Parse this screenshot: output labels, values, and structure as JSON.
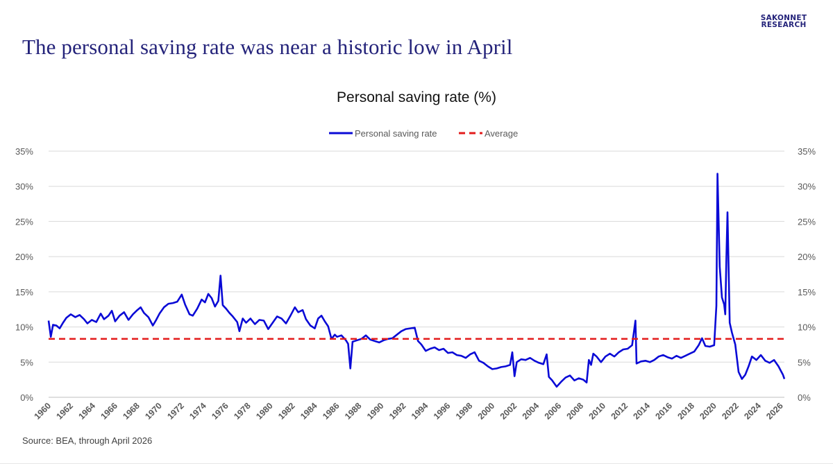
{
  "headline": "The personal saving rate was near a historic low in April",
  "logo": {
    "line1": "SAKONNET",
    "line2": "RESEARCH"
  },
  "source": "Source: BEA, through April 2026",
  "colors": {
    "headline": "#24237a",
    "series": "#0a0ad6",
    "average": "#e31b1b",
    "grid": "#d9d9d9",
    "axis_text": "#595959"
  },
  "chart_data": {
    "type": "line",
    "title": "Personal saving rate (%)",
    "xlabel": "",
    "ylabel": "",
    "legend_position": "top",
    "grid": true,
    "xlim": [
      1960,
      2026.33
    ],
    "ylim": [
      0,
      35
    ],
    "y_ticks": [
      0,
      5,
      10,
      15,
      20,
      25,
      30,
      35
    ],
    "y_tick_labels": [
      "0%",
      "5%",
      "10%",
      "15%",
      "20%",
      "25%",
      "30%",
      "35%"
    ],
    "x_tick_labels": [
      "1960",
      "1962",
      "1964",
      "1966",
      "1968",
      "1970",
      "1972",
      "1974",
      "1976",
      "1978",
      "1980",
      "1982",
      "1984",
      "1986",
      "1988",
      "1990",
      "1992",
      "1994",
      "1996",
      "1998",
      "2000",
      "2002",
      "2004",
      "2006",
      "2008",
      "2010",
      "2012",
      "2014",
      "2016",
      "2018",
      "2020",
      "2022",
      "2024",
      "2026"
    ],
    "series": [
      {
        "name": "Personal saving rate",
        "style": "solid",
        "color": "#0a0ad6",
        "points": [
          [
            1960.0,
            10.9
          ],
          [
            1960.2,
            8.6
          ],
          [
            1960.4,
            10.3
          ],
          [
            1960.7,
            10.2
          ],
          [
            1961.0,
            9.8
          ],
          [
            1961.3,
            10.6
          ],
          [
            1961.6,
            11.3
          ],
          [
            1962.0,
            11.8
          ],
          [
            1962.4,
            11.4
          ],
          [
            1962.8,
            11.7
          ],
          [
            1963.2,
            11.1
          ],
          [
            1963.5,
            10.5
          ],
          [
            1963.9,
            11.0
          ],
          [
            1964.3,
            10.7
          ],
          [
            1964.7,
            11.9
          ],
          [
            1965.0,
            11.1
          ],
          [
            1965.4,
            11.6
          ],
          [
            1965.7,
            12.3
          ],
          [
            1966.0,
            10.8
          ],
          [
            1966.4,
            11.6
          ],
          [
            1966.8,
            12.1
          ],
          [
            1967.2,
            11.0
          ],
          [
            1967.6,
            11.8
          ],
          [
            1968.0,
            12.4
          ],
          [
            1968.3,
            12.8
          ],
          [
            1968.6,
            12.0
          ],
          [
            1969.0,
            11.4
          ],
          [
            1969.4,
            10.2
          ],
          [
            1969.7,
            11.0
          ],
          [
            1970.0,
            11.9
          ],
          [
            1970.4,
            12.8
          ],
          [
            1970.8,
            13.3
          ],
          [
            1971.2,
            13.4
          ],
          [
            1971.6,
            13.6
          ],
          [
            1972.0,
            14.6
          ],
          [
            1972.3,
            13.2
          ],
          [
            1972.7,
            11.8
          ],
          [
            1973.0,
            11.6
          ],
          [
            1973.4,
            12.6
          ],
          [
            1973.8,
            13.9
          ],
          [
            1974.1,
            13.5
          ],
          [
            1974.4,
            14.7
          ],
          [
            1974.7,
            14.1
          ],
          [
            1975.0,
            12.9
          ],
          [
            1975.3,
            13.7
          ],
          [
            1975.5,
            17.3
          ],
          [
            1975.7,
            13.1
          ],
          [
            1976.0,
            12.6
          ],
          [
            1976.3,
            12.0
          ],
          [
            1976.6,
            11.5
          ],
          [
            1977.0,
            10.7
          ],
          [
            1977.2,
            9.4
          ],
          [
            1977.5,
            11.2
          ],
          [
            1977.8,
            10.6
          ],
          [
            1978.2,
            11.2
          ],
          [
            1978.6,
            10.4
          ],
          [
            1979.0,
            11.0
          ],
          [
            1979.4,
            10.9
          ],
          [
            1979.8,
            9.7
          ],
          [
            1980.2,
            10.6
          ],
          [
            1980.6,
            11.5
          ],
          [
            1981.0,
            11.2
          ],
          [
            1981.4,
            10.5
          ],
          [
            1981.8,
            11.6
          ],
          [
            1982.2,
            12.8
          ],
          [
            1982.5,
            12.1
          ],
          [
            1982.9,
            12.4
          ],
          [
            1983.2,
            11.1
          ],
          [
            1983.6,
            10.2
          ],
          [
            1984.0,
            9.8
          ],
          [
            1984.3,
            11.2
          ],
          [
            1984.6,
            11.6
          ],
          [
            1984.9,
            10.8
          ],
          [
            1985.2,
            10.1
          ],
          [
            1985.5,
            8.3
          ],
          [
            1985.8,
            8.9
          ],
          [
            1986.0,
            8.6
          ],
          [
            1986.4,
            8.8
          ],
          [
            1986.8,
            8.1
          ],
          [
            1987.0,
            7.6
          ],
          [
            1987.2,
            4.1
          ],
          [
            1987.4,
            7.9
          ],
          [
            1987.8,
            8.1
          ],
          [
            1988.2,
            8.3
          ],
          [
            1988.6,
            8.8
          ],
          [
            1989.0,
            8.2
          ],
          [
            1989.4,
            8.0
          ],
          [
            1989.8,
            7.8
          ],
          [
            1990.2,
            8.1
          ],
          [
            1990.6,
            8.3
          ],
          [
            1991.0,
            8.4
          ],
          [
            1991.4,
            8.9
          ],
          [
            1991.8,
            9.4
          ],
          [
            1992.2,
            9.7
          ],
          [
            1992.6,
            9.8
          ],
          [
            1993.0,
            9.9
          ],
          [
            1993.3,
            8.0
          ],
          [
            1993.6,
            7.5
          ],
          [
            1994.0,
            6.6
          ],
          [
            1994.4,
            6.9
          ],
          [
            1994.8,
            7.1
          ],
          [
            1995.2,
            6.7
          ],
          [
            1995.6,
            6.9
          ],
          [
            1996.0,
            6.3
          ],
          [
            1996.4,
            6.4
          ],
          [
            1996.8,
            6.0
          ],
          [
            1997.2,
            5.9
          ],
          [
            1997.6,
            5.6
          ],
          [
            1998.0,
            6.1
          ],
          [
            1998.4,
            6.4
          ],
          [
            1998.8,
            5.2
          ],
          [
            1999.2,
            4.9
          ],
          [
            1999.6,
            4.4
          ],
          [
            2000.0,
            4.0
          ],
          [
            2000.4,
            4.1
          ],
          [
            2000.8,
            4.3
          ],
          [
            2001.2,
            4.4
          ],
          [
            2001.6,
            4.6
          ],
          [
            2001.8,
            6.4
          ],
          [
            2002.0,
            3.0
          ],
          [
            2002.2,
            5.0
          ],
          [
            2002.6,
            5.4
          ],
          [
            2003.0,
            5.3
          ],
          [
            2003.4,
            5.6
          ],
          [
            2003.8,
            5.2
          ],
          [
            2004.2,
            4.9
          ],
          [
            2004.6,
            4.7
          ],
          [
            2004.9,
            6.1
          ],
          [
            2005.1,
            2.9
          ],
          [
            2005.4,
            2.4
          ],
          [
            2005.8,
            1.5
          ],
          [
            2006.2,
            2.2
          ],
          [
            2006.6,
            2.8
          ],
          [
            2007.0,
            3.1
          ],
          [
            2007.4,
            2.4
          ],
          [
            2007.8,
            2.7
          ],
          [
            2008.2,
            2.5
          ],
          [
            2008.5,
            2.1
          ],
          [
            2008.7,
            5.3
          ],
          [
            2008.9,
            4.6
          ],
          [
            2009.1,
            6.2
          ],
          [
            2009.4,
            5.8
          ],
          [
            2009.8,
            5.0
          ],
          [
            2010.2,
            5.8
          ],
          [
            2010.6,
            6.2
          ],
          [
            2011.0,
            5.8
          ],
          [
            2011.4,
            6.4
          ],
          [
            2011.8,
            6.8
          ],
          [
            2012.2,
            6.9
          ],
          [
            2012.6,
            7.4
          ],
          [
            2012.9,
            10.9
          ],
          [
            2013.0,
            4.8
          ],
          [
            2013.4,
            5.1
          ],
          [
            2013.8,
            5.2
          ],
          [
            2014.2,
            5.0
          ],
          [
            2014.6,
            5.3
          ],
          [
            2015.0,
            5.8
          ],
          [
            2015.4,
            6.0
          ],
          [
            2015.8,
            5.7
          ],
          [
            2016.2,
            5.5
          ],
          [
            2016.6,
            5.9
          ],
          [
            2017.0,
            5.6
          ],
          [
            2017.4,
            5.9
          ],
          [
            2017.8,
            6.2
          ],
          [
            2018.2,
            6.5
          ],
          [
            2018.6,
            7.4
          ],
          [
            2018.9,
            8.4
          ],
          [
            2019.2,
            7.3
          ],
          [
            2019.6,
            7.2
          ],
          [
            2020.0,
            7.4
          ],
          [
            2020.2,
            13.0
          ],
          [
            2020.3,
            31.8
          ],
          [
            2020.5,
            18.6
          ],
          [
            2020.7,
            14.2
          ],
          [
            2020.9,
            13.2
          ],
          [
            2021.0,
            11.8
          ],
          [
            2021.1,
            19.7
          ],
          [
            2021.2,
            26.3
          ],
          [
            2021.4,
            10.6
          ],
          [
            2021.6,
            9.2
          ],
          [
            2021.9,
            7.5
          ],
          [
            2022.2,
            3.6
          ],
          [
            2022.5,
            2.6
          ],
          [
            2022.8,
            3.2
          ],
          [
            2023.1,
            4.4
          ],
          [
            2023.4,
            5.8
          ],
          [
            2023.8,
            5.3
          ],
          [
            2024.2,
            6.0
          ],
          [
            2024.6,
            5.2
          ],
          [
            2025.0,
            4.9
          ],
          [
            2025.4,
            5.3
          ],
          [
            2025.8,
            4.4
          ],
          [
            2026.0,
            3.8
          ],
          [
            2026.2,
            3.2
          ],
          [
            2026.33,
            2.6
          ]
        ]
      },
      {
        "name": "Average",
        "style": "dashed",
        "color": "#e31b1b",
        "points": [
          [
            1960.0,
            8.3
          ],
          [
            2026.33,
            8.3
          ]
        ]
      }
    ]
  }
}
